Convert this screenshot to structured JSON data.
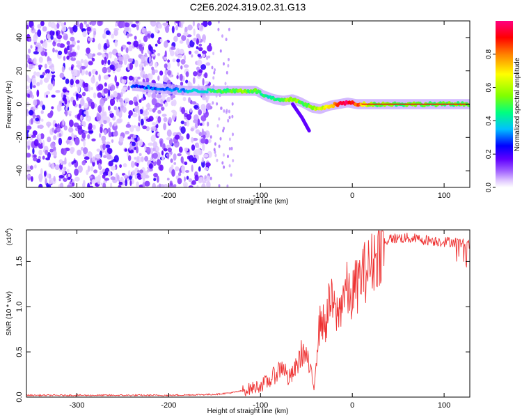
{
  "title": "C2E6.2024.319.02.31.G13",
  "chart_data": [
    {
      "type": "heatmap",
      "xlabel": "Height of straight line (km)",
      "ylabel": "Frequency (Hz)",
      "xlim": [
        -355,
        128
      ],
      "ylim": [
        -50,
        50
      ],
      "xticks": [
        -300,
        -200,
        -100,
        0,
        100
      ],
      "yticks": [
        -40,
        -20,
        0,
        20,
        40
      ],
      "xtick_labels": [
        "-300",
        "-200",
        "-100",
        "0",
        "100"
      ],
      "ytick_labels": [
        "-40",
        "-20",
        "0",
        "20",
        "40"
      ],
      "colorbar": {
        "label": "Normalized spectral amplitude",
        "range": [
          0,
          1
        ],
        "ticks": [
          0.0,
          0.2,
          0.4,
          0.6,
          0.8
        ],
        "tick_labels": [
          "0.0",
          "0.2",
          "0.4",
          "0.6",
          "0.8"
        ],
        "colors": [
          "#ffffff",
          "#e0c8ff",
          "#a060ff",
          "#6000ff",
          "#0000ff",
          "#00c0ff",
          "#00ff80",
          "#80ff00",
          "#ffff00",
          "#ff8000",
          "#ff0000",
          "#ff0080"
        ]
      },
      "noise_region_x": [
        -355,
        -155
      ],
      "signal_trace": {
        "x": [
          -240,
          -220,
          -200,
          -180,
          -160,
          -140,
          -120,
          -105,
          -95,
          -85,
          -75,
          -65,
          -55,
          -45,
          -35,
          -25,
          -15,
          -5,
          5,
          20,
          50,
          80,
          110,
          128
        ],
        "y": [
          11,
          10,
          9,
          8,
          8,
          8,
          8,
          8,
          5,
          3,
          2,
          3,
          1,
          -2,
          -3,
          -1,
          0,
          1,
          0,
          0,
          0,
          0,
          0,
          0
        ],
        "amplitude": [
          0.25,
          0.3,
          0.3,
          0.35,
          0.4,
          0.5,
          0.55,
          0.5,
          0.45,
          0.45,
          0.55,
          0.6,
          0.5,
          0.55,
          0.6,
          0.7,
          0.9,
          0.95,
          0.85,
          0.55,
          0.5,
          0.5,
          0.5,
          0.5
        ]
      }
    },
    {
      "type": "line",
      "xlabel": "Height of straight line (km)",
      "ylabel": "SNR (10 * v/v)",
      "scale_label": "(x10^4)",
      "scale_base": "(x10",
      "scale_exp": "4",
      "scale_close": ")",
      "xlim": [
        -355,
        128
      ],
      "ylim": [
        0,
        1.85
      ],
      "xticks": [
        -300,
        -200,
        -100,
        0,
        100
      ],
      "yticks": [
        0.0,
        0.5,
        1.0,
        1.5
      ],
      "xtick_labels": [
        "-300",
        "-200",
        "-100",
        "0",
        "100"
      ],
      "ytick_labels": [
        "0.0",
        "0.5",
        "1.0",
        "1.5"
      ],
      "line_color": "#ee3333",
      "series": [
        {
          "x": [
            -355,
            -300,
            -250,
            -200,
            -150,
            -130,
            -115,
            -100,
            -90,
            -80,
            -75,
            -70,
            -65,
            -60,
            -55,
            -50,
            -45,
            -42,
            -38,
            -34,
            -30,
            -26,
            -22,
            -18,
            -14,
            -10,
            -6,
            -2,
            2,
            6,
            10,
            15,
            20,
            25,
            30,
            35,
            40,
            50,
            60,
            70,
            80,
            90,
            100,
            110,
            120,
            128
          ],
          "y": [
            0.02,
            0.02,
            0.02,
            0.02,
            0.03,
            0.05,
            0.08,
            0.13,
            0.18,
            0.3,
            0.35,
            0.2,
            0.25,
            0.35,
            0.5,
            0.45,
            0.25,
            0.1,
            0.6,
            0.9,
            0.75,
            1.0,
            1.05,
            0.9,
            0.95,
            1.15,
            1.2,
            1.05,
            1.2,
            1.25,
            1.35,
            1.4,
            1.45,
            1.55,
            1.65,
            1.72,
            1.75,
            1.76,
            1.76,
            1.75,
            1.74,
            1.73,
            1.72,
            1.72,
            1.7,
            1.68
          ]
        }
      ]
    }
  ]
}
